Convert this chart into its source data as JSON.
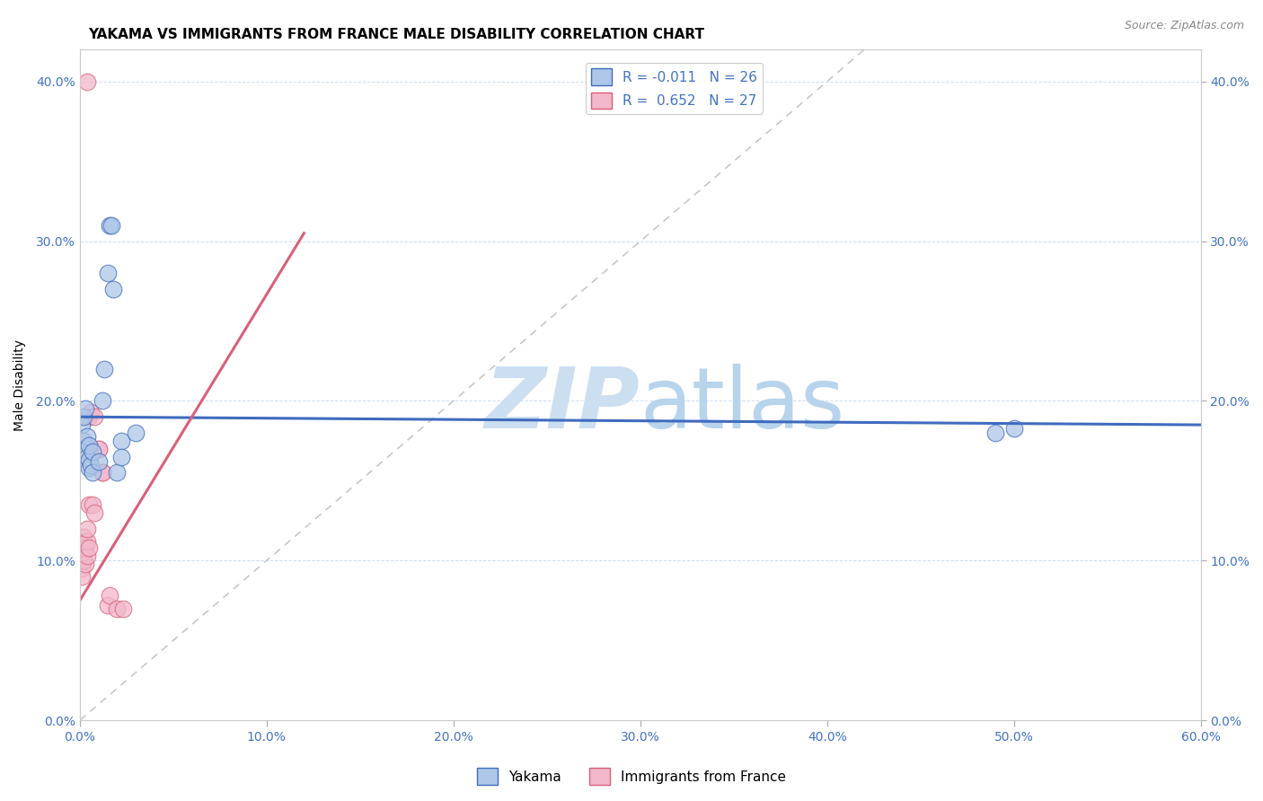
{
  "title": "YAKAMA VS IMMIGRANTS FROM FRANCE MALE DISABILITY CORRELATION CHART",
  "source": "Source: ZipAtlas.com",
  "ylabel": "Male Disability",
  "legend_label_blue": "R = -0.011   N = 26",
  "legend_label_pink": "R =  0.652   N = 27",
  "legend_bottom_blue": "Yakama",
  "legend_bottom_pink": "Immigrants from France",
  "xlim": [
    0.0,
    0.6
  ],
  "ylim": [
    0.0,
    0.42
  ],
  "xticks": [
    0.0,
    0.1,
    0.2,
    0.3,
    0.4,
    0.5,
    0.6
  ],
  "yticks": [
    0.0,
    0.1,
    0.2,
    0.3,
    0.4
  ],
  "color_blue": "#aec6e8",
  "color_pink": "#f2b8cc",
  "color_blue_line": "#3f6bbf",
  "color_pink_line": "#d9607a",
  "color_dashed": "#c8c8c8",
  "blue_scatter": [
    [
      0.001,
      0.185
    ],
    [
      0.002,
      0.19
    ],
    [
      0.002,
      0.175
    ],
    [
      0.003,
      0.17
    ],
    [
      0.003,
      0.195
    ],
    [
      0.004,
      0.165
    ],
    [
      0.004,
      0.178
    ],
    [
      0.005,
      0.158
    ],
    [
      0.005,
      0.163
    ],
    [
      0.005,
      0.172
    ],
    [
      0.006,
      0.16
    ],
    [
      0.007,
      0.155
    ],
    [
      0.007,
      0.168
    ],
    [
      0.01,
      0.162
    ],
    [
      0.012,
      0.2
    ],
    [
      0.013,
      0.22
    ],
    [
      0.015,
      0.28
    ],
    [
      0.016,
      0.31
    ],
    [
      0.017,
      0.31
    ],
    [
      0.018,
      0.27
    ],
    [
      0.02,
      0.155
    ],
    [
      0.022,
      0.175
    ],
    [
      0.022,
      0.165
    ],
    [
      0.03,
      0.18
    ],
    [
      0.49,
      0.18
    ],
    [
      0.5,
      0.183
    ]
  ],
  "pink_scatter": [
    [
      0.001,
      0.095
    ],
    [
      0.001,
      0.09
    ],
    [
      0.001,
      0.11
    ],
    [
      0.002,
      0.1
    ],
    [
      0.002,
      0.105
    ],
    [
      0.002,
      0.115
    ],
    [
      0.003,
      0.098
    ],
    [
      0.003,
      0.108
    ],
    [
      0.004,
      0.103
    ],
    [
      0.004,
      0.112
    ],
    [
      0.004,
      0.12
    ],
    [
      0.005,
      0.108
    ],
    [
      0.005,
      0.135
    ],
    [
      0.005,
      0.19
    ],
    [
      0.006,
      0.193
    ],
    [
      0.007,
      0.135
    ],
    [
      0.008,
      0.13
    ],
    [
      0.008,
      0.19
    ],
    [
      0.01,
      0.17
    ],
    [
      0.01,
      0.17
    ],
    [
      0.012,
      0.155
    ],
    [
      0.012,
      0.155
    ],
    [
      0.015,
      0.072
    ],
    [
      0.016,
      0.078
    ],
    [
      0.02,
      0.07
    ],
    [
      0.023,
      0.07
    ],
    [
      0.004,
      0.4
    ]
  ],
  "blue_line_x": [
    0.0,
    0.6
  ],
  "blue_line_y": [
    0.19,
    0.185
  ],
  "pink_line_x": [
    0.0,
    0.12
  ],
  "pink_line_y": [
    0.075,
    0.305
  ],
  "watermark_zip": "ZIP",
  "watermark_atlas": "atlas",
  "watermark_color": "#d8eaf8",
  "background_color": "#ffffff",
  "title_fontsize": 11,
  "axis_label_fontsize": 10,
  "tick_fontsize": 10
}
